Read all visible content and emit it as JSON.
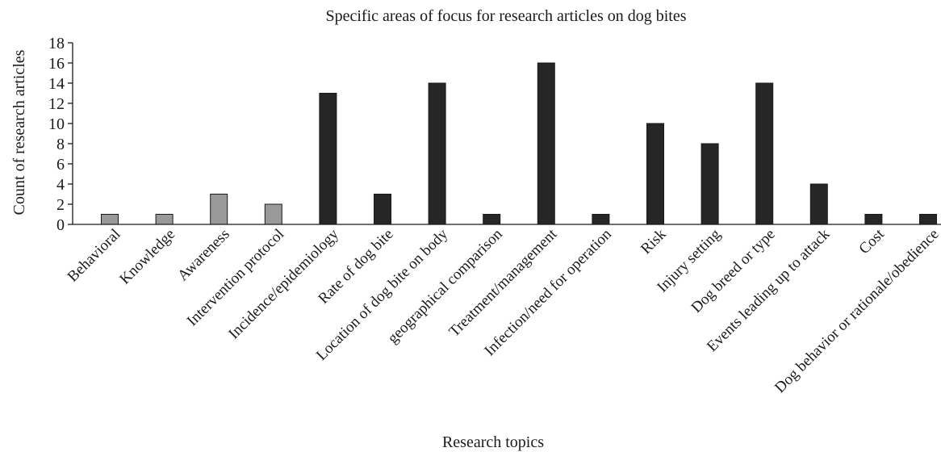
{
  "chart_data": {
    "type": "bar",
    "title": "Specific areas of focus for research articles on dog bites",
    "xlabel": "Research topics",
    "ylabel": "Count of research articles",
    "ylim": [
      0,
      18
    ],
    "yticks": [
      0,
      2,
      4,
      6,
      8,
      10,
      12,
      14,
      16,
      18
    ],
    "grid": false,
    "legend": "none",
    "categories": [
      "Behavioral",
      "Knowledge",
      "Awareness",
      "Intervention protocol",
      "Incidence/epidemiology",
      "Rate of dog bite",
      "Location of dog bite on body",
      "geographical comparison",
      "Treatment/management",
      "Infection/need for operation",
      "Risk",
      "Injury setting",
      "Dog breed or type",
      "Events leading up to attack",
      "Cost",
      "Dog behavior or rationale/obedience"
    ],
    "values": [
      1,
      1,
      3,
      2,
      13,
      3,
      14,
      1,
      16,
      1,
      10,
      8,
      14,
      4,
      1,
      1
    ],
    "bar_colors": [
      "#999999",
      "#999999",
      "#999999",
      "#999999",
      "#262626",
      "#262626",
      "#262626",
      "#262626",
      "#262626",
      "#262626",
      "#262626",
      "#262626",
      "#262626",
      "#262626",
      "#262626",
      "#262626"
    ]
  }
}
